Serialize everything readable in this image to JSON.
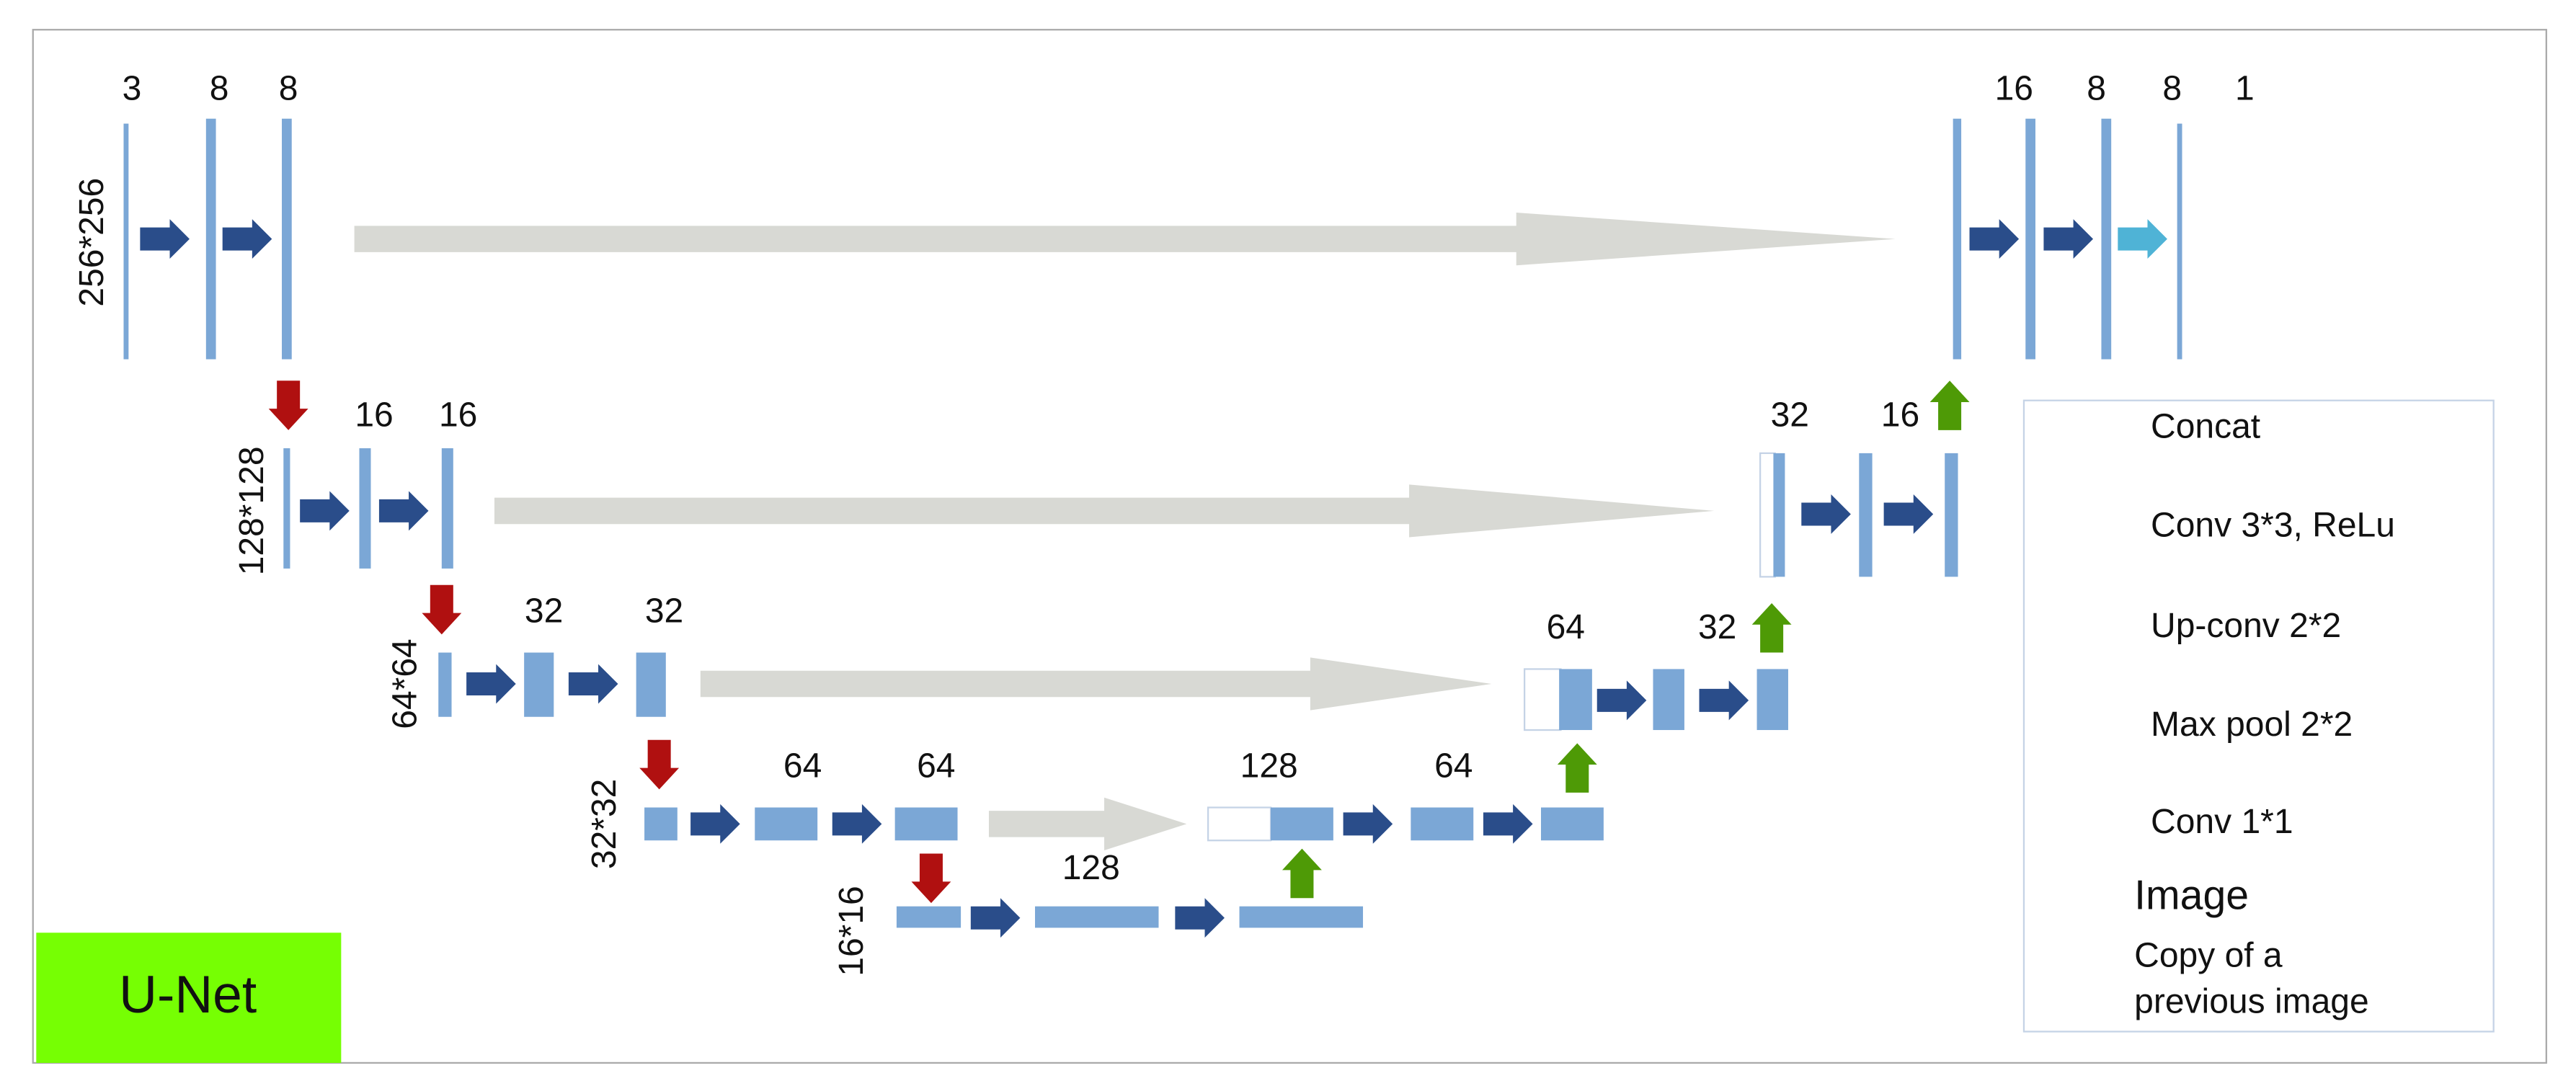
{
  "title": "U-Net",
  "encoder": [
    {
      "size": "256*256",
      "channels": [
        "3",
        "8",
        "8"
      ]
    },
    {
      "size": "128*128",
      "channels": [
        "16",
        "16"
      ]
    },
    {
      "size": "64*64",
      "channels": [
        "32",
        "32"
      ]
    },
    {
      "size": "32*32",
      "channels": [
        "64",
        "64"
      ]
    },
    {
      "size": "16*16",
      "channels": [
        "128"
      ]
    }
  ],
  "decoder": [
    {
      "channels": [
        "16",
        "8",
        "8",
        "1"
      ]
    },
    {
      "channels": [
        "32",
        "16"
      ]
    },
    {
      "channels": [
        "64",
        "32"
      ]
    },
    {
      "channels": [
        "128",
        "64"
      ]
    }
  ],
  "legend": [
    "Concat",
    "Conv 3*3, ReLu",
    "Up-conv 2*2",
    "Max pool 2*2",
    "Conv 1*1",
    "Image",
    "Copy of  a",
    "previous image"
  ]
}
